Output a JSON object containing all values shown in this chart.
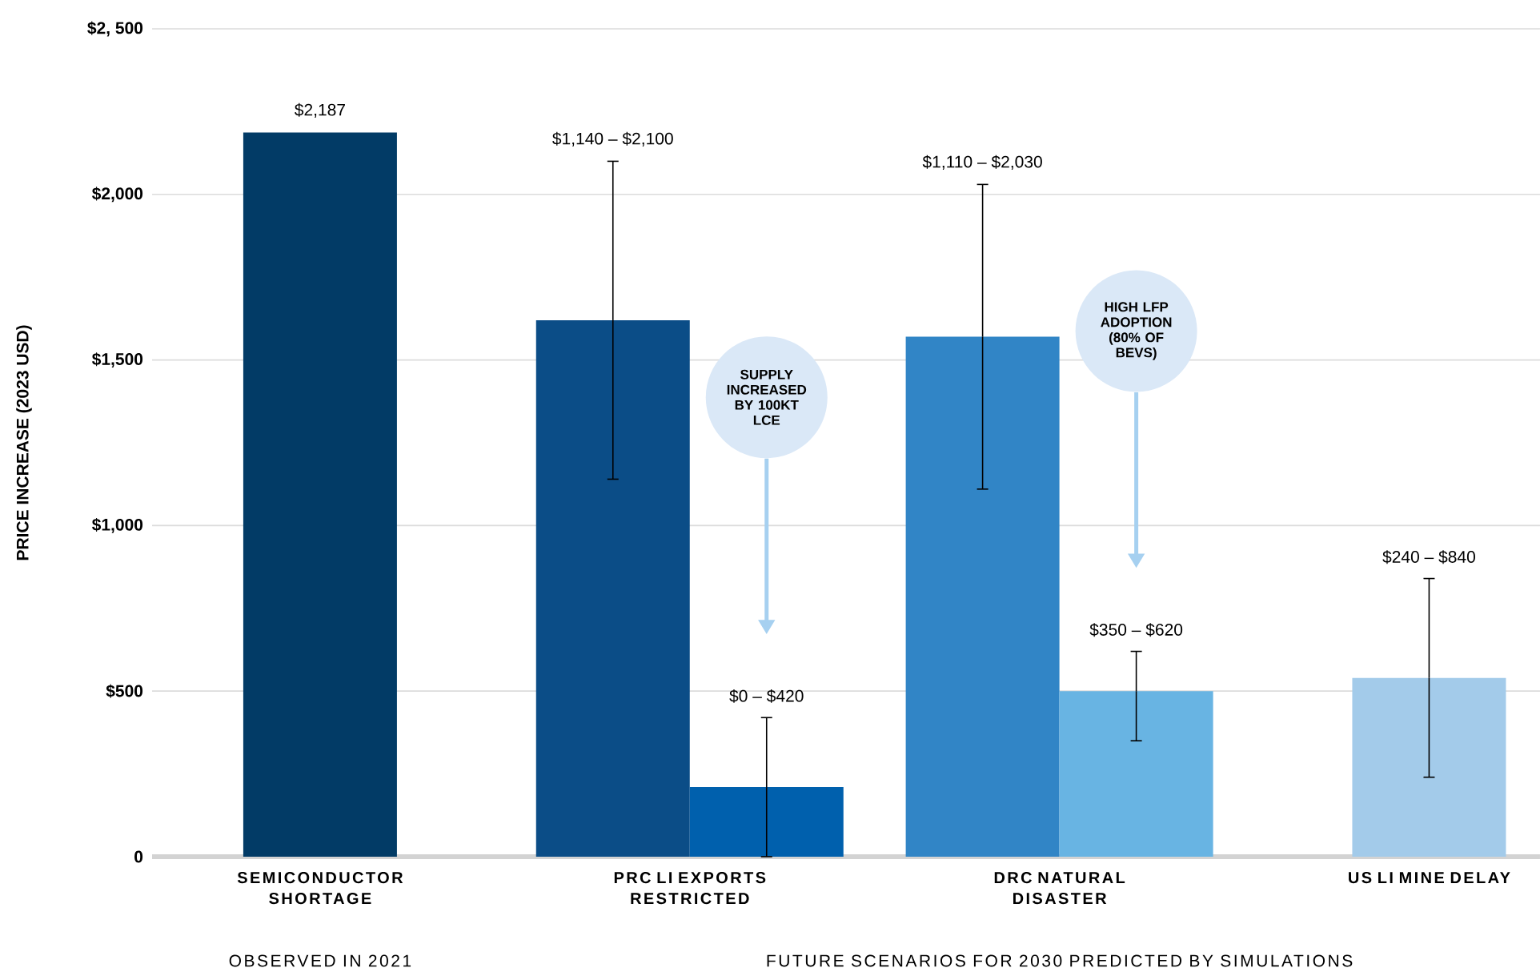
{
  "chart_data": {
    "type": "bar",
    "ylabel": "PRICE INCREASE (2023 USD)",
    "categories": [
      "SEMICONDUCTOR SHORTAGE",
      "PRC LI EXPORTS RESTRICTED",
      "DRC NATURAL DISASTER",
      "US LI MINE DELAY"
    ],
    "series": [
      {
        "colors": [
          "#023b66",
          "#0b4d87",
          "#3185c6",
          "#a3cbea"
        ],
        "values": [
          2187,
          1620,
          1570,
          540
        ],
        "errors": [
          null,
          [
            1140,
            2100
          ],
          [
            1110,
            2030
          ],
          [
            240,
            840
          ]
        ],
        "value_labels": [
          "$2,187",
          null,
          null,
          null
        ]
      },
      {
        "colors": [
          null,
          "#0060ad",
          "#68b4e3",
          null
        ],
        "values": [
          null,
          210,
          500,
          null
        ],
        "errors": [
          null,
          [
            0,
            420
          ],
          [
            350,
            620
          ],
          null
        ]
      }
    ],
    "ylim": [
      0,
      2500
    ],
    "yticks": [
      {
        "value": 0,
        "label": "0"
      },
      {
        "value": 500,
        "label": "$500"
      },
      {
        "value": 1000,
        "label": "$1,000"
      },
      {
        "value": 1500,
        "label": "$1,500"
      },
      {
        "value": 2000,
        "label": "$2,000"
      },
      {
        "value": 2500,
        "label": "$2, 500"
      }
    ],
    "grid": "y",
    "annotations": [
      "$1,140 – $2,100",
      "$0 – $420",
      "$1,110 – $2,030",
      "$350 – $620",
      "$240 – $840",
      "SUPPLY INCREASED BY 100KT LCE",
      "HIGH LFP ADOPTION (80% OF BEVS)",
      "OBSERVED IN 2021",
      "FUTURE SCENARIOS FOR 2030 PREDICTED BY SIMULATIONS"
    ]
  }
}
